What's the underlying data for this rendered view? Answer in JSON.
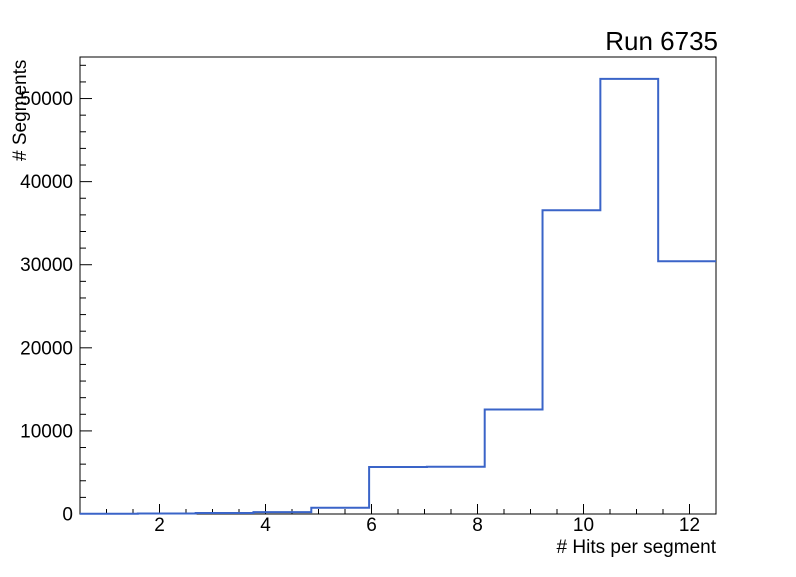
{
  "chart_data": {
    "type": "bar",
    "subtype": "step-histogram",
    "title": "Run 6735",
    "xlabel": "# Hits per segment",
    "ylabel": "# Segments",
    "xlim": [
      0.5,
      12.5
    ],
    "ylim": [
      0,
      55000
    ],
    "grid": false,
    "legend": "none",
    "n_bins": 11,
    "bin_edges": [
      0.5,
      1.591,
      2.682,
      3.773,
      4.864,
      5.955,
      7.045,
      8.136,
      9.227,
      10.318,
      11.409,
      12.5
    ],
    "values": [
      30,
      60,
      120,
      220,
      750,
      5660,
      5690,
      12570,
      36560,
      52360,
      30420
    ],
    "x_major_ticks": [
      2,
      4,
      6,
      8,
      10,
      12
    ],
    "x_tick_labels": [
      "2",
      "4",
      "6",
      "8",
      "10",
      "12"
    ],
    "x_minor_step": 0.5,
    "y_major_ticks": [
      0,
      10000,
      20000,
      30000,
      40000,
      50000
    ],
    "y_tick_labels": [
      "0",
      "10000",
      "20000",
      "30000",
      "40000",
      "50000"
    ],
    "y_minor_step": 2000,
    "line_color": "#3A64C8",
    "frame_color": "#000000",
    "background_color": "#ffffff"
  }
}
